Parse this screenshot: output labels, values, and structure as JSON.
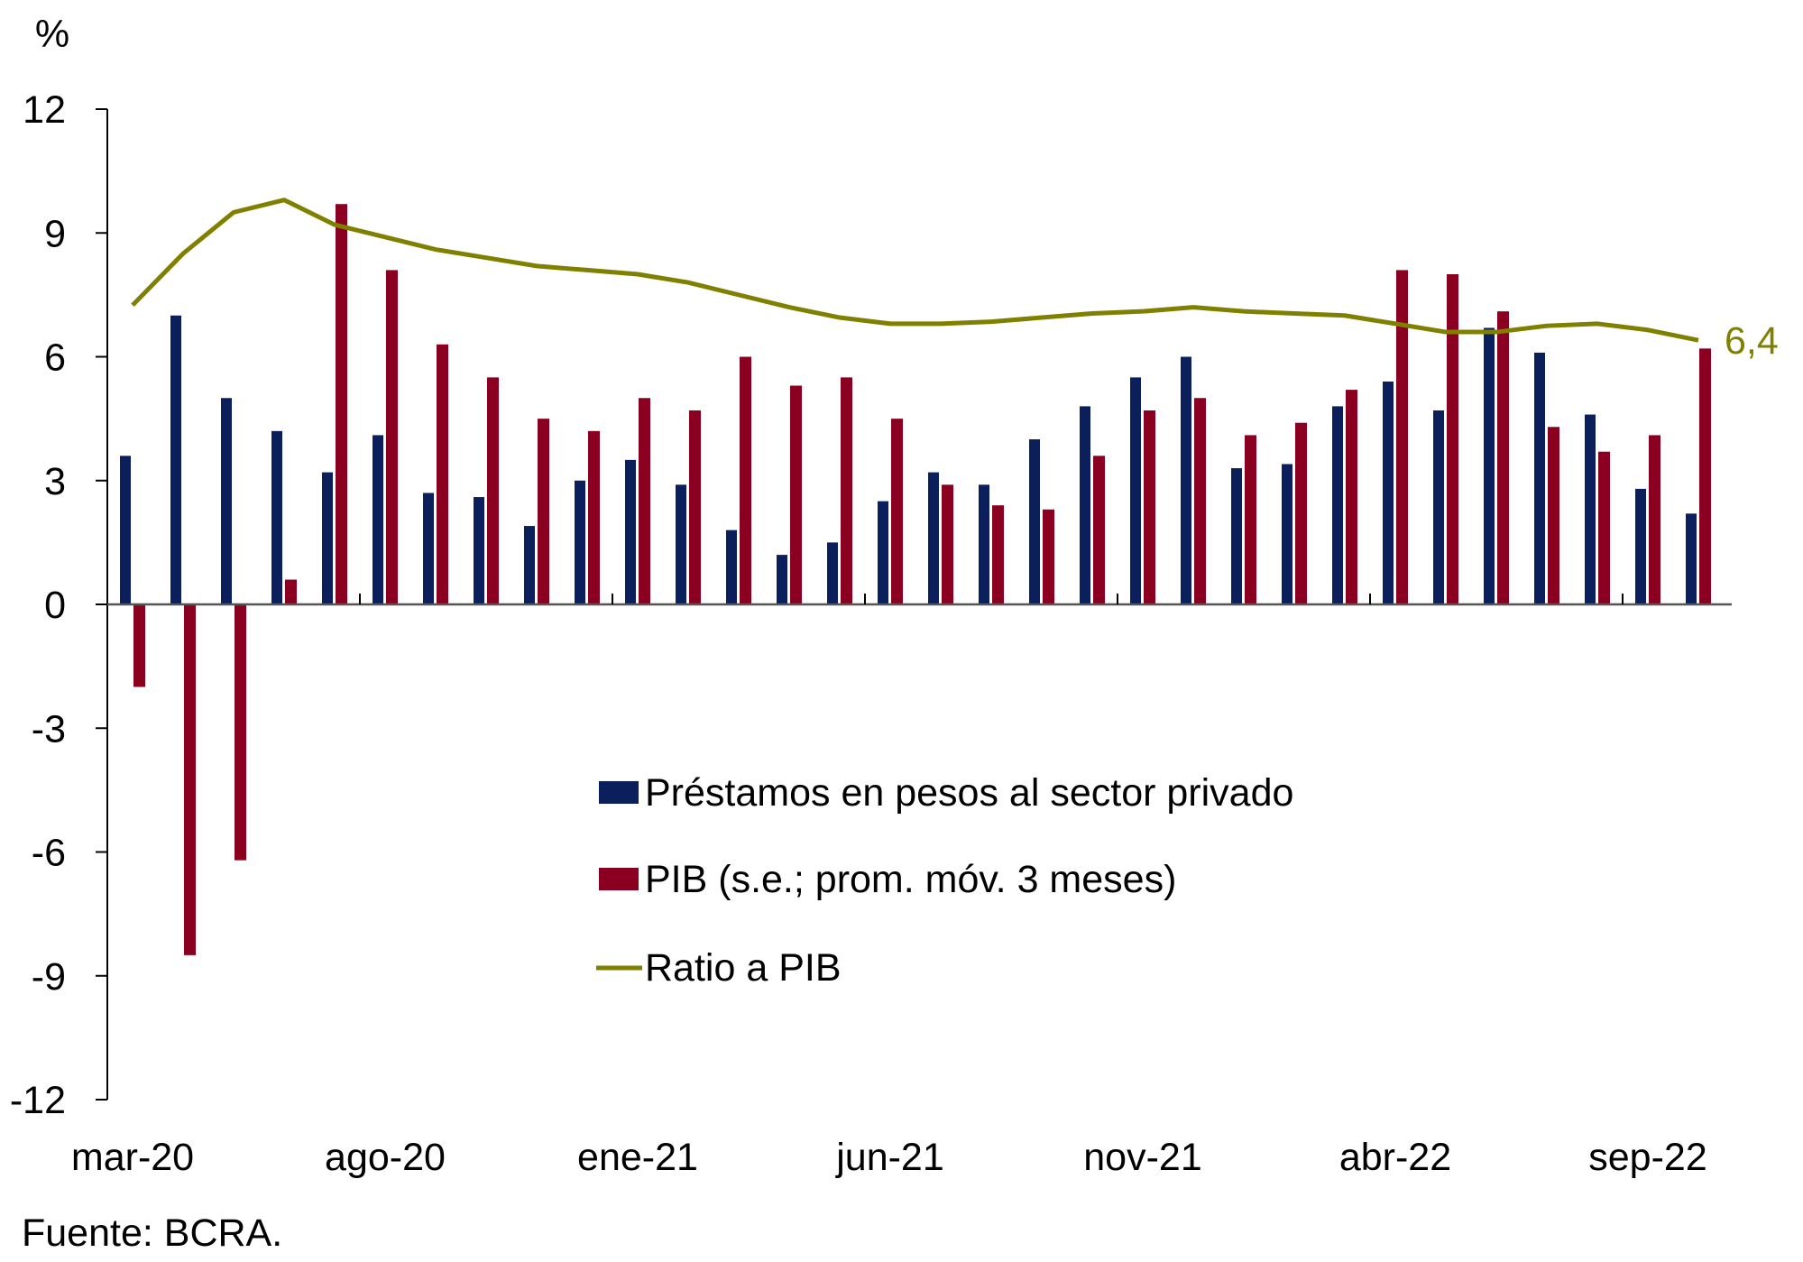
{
  "chart_data": {
    "type": "bar",
    "unit_label": "%",
    "x": [
      "mar-20",
      "abr-20",
      "may-20",
      "jun-20",
      "jul-20",
      "ago-20",
      "sep-20",
      "oct-20",
      "nov-20",
      "dic-20",
      "ene-21",
      "feb-21",
      "mar-21",
      "abr-21",
      "may-21",
      "jun-21",
      "jul-21",
      "ago-21",
      "sep-21",
      "oct-21",
      "nov-21",
      "dic-21",
      "ene-22",
      "feb-22",
      "mar-22",
      "abr-22",
      "may-22",
      "jun-22",
      "jul-22",
      "ago-22",
      "sep-22",
      "oct-22"
    ],
    "x_tick_labels": [
      "mar-20",
      "ago-20",
      "ene-21",
      "jun-21",
      "nov-21",
      "abr-22",
      "sep-22"
    ],
    "ylim": [
      -12,
      12
    ],
    "y_ticks": [
      12,
      9,
      6,
      3,
      0,
      -3,
      -6,
      -9,
      -12
    ],
    "grid": false,
    "legend_placement": "center",
    "series": [
      {
        "name": "Préstamos en pesos al sector privado",
        "type": "bar",
        "color": "#0a1f5c",
        "values": [
          3.6,
          7.0,
          5.0,
          4.2,
          3.2,
          4.1,
          2.7,
          2.6,
          1.9,
          3.0,
          3.5,
          2.9,
          1.8,
          1.2,
          1.5,
          2.5,
          3.2,
          2.9,
          4.0,
          4.8,
          5.5,
          6.0,
          3.3,
          3.4,
          4.8,
          5.4,
          4.7,
          6.7,
          6.1,
          4.6,
          2.8,
          2.2
        ]
      },
      {
        "name": "PIB (s.e.; prom. móv. 3 meses)",
        "type": "bar",
        "color": "#8b0020",
        "values": [
          -2.0,
          -8.5,
          -6.2,
          0.6,
          9.7,
          8.1,
          6.3,
          5.5,
          4.5,
          4.2,
          5.0,
          4.7,
          6.0,
          5.3,
          5.5,
          4.5,
          2.9,
          2.4,
          2.3,
          3.6,
          4.7,
          5.0,
          4.1,
          4.4,
          5.2,
          8.1,
          8.0,
          7.1,
          4.3,
          3.7,
          4.1,
          6.2
        ]
      },
      {
        "name": "Ratio a PIB",
        "type": "line",
        "color": "#808000",
        "values": [
          7.25,
          8.5,
          9.5,
          9.8,
          9.2,
          8.9,
          8.6,
          8.4,
          8.2,
          8.1,
          8.0,
          7.8,
          7.5,
          7.2,
          6.95,
          6.8,
          6.8,
          6.85,
          6.95,
          7.05,
          7.1,
          7.2,
          7.1,
          7.05,
          7.0,
          6.8,
          6.6,
          6.6,
          6.75,
          6.8,
          6.65,
          6.4
        ]
      }
    ],
    "annotation": "6,4",
    "source": "Fuente: BCRA."
  }
}
